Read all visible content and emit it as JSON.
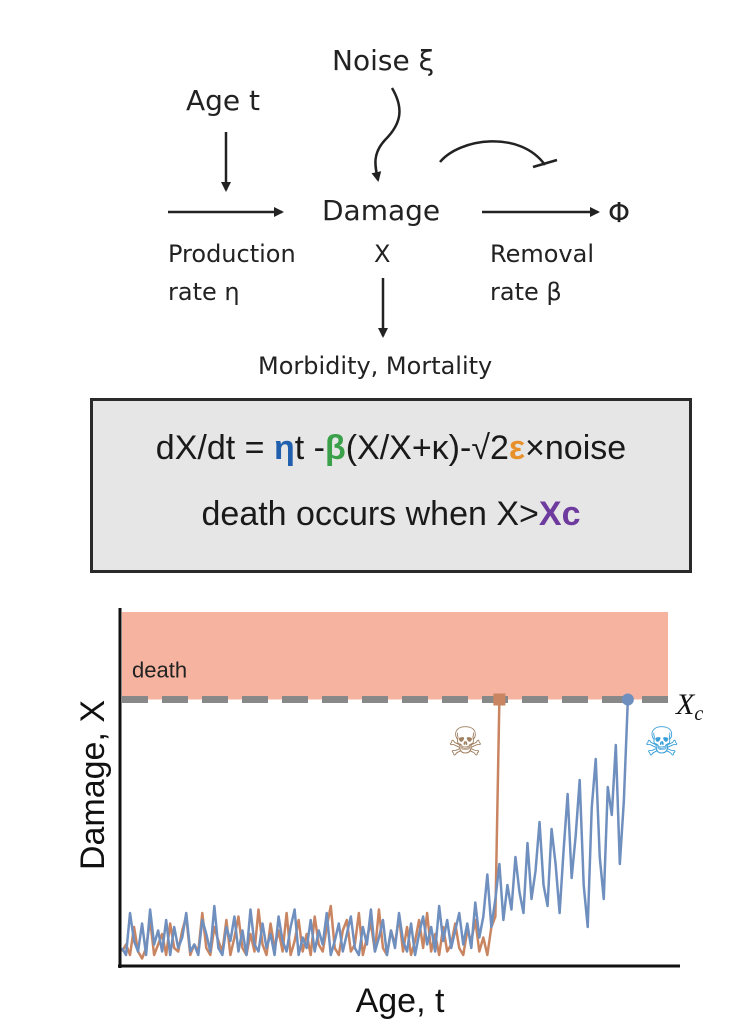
{
  "diagram": {
    "noise_label": "Noise ξ",
    "age_label": "Age t",
    "damage_label": "Damage",
    "damage_symbol": "X",
    "phi_symbol": "Φ",
    "production_line1": "Production",
    "production_line2": "rate  η",
    "removal_line1": "Removal",
    "removal_line2": "rate  β",
    "outcome_label": "Morbidity, Mortality"
  },
  "equation": {
    "line1_prefix": "dX/dt = ",
    "eta": "η",
    "line1_t": "t -",
    "beta": "β",
    "line1_mid": "(X/X+κ)-√2",
    "epsilon": "ε",
    "line1_suffix": "×noise",
    "line2_prefix": "death occurs when X>",
    "xc": "Xc",
    "colors": {
      "eta": "#1f5fae",
      "beta": "#3aa04a",
      "epsilon": "#e8912b",
      "xc": "#6f3a9e"
    }
  },
  "chart_data": {
    "type": "line",
    "xlabel": "Age, t",
    "ylabel": "Damage, X",
    "region_label": "death",
    "threshold_label": "X",
    "threshold_subscript": "c",
    "threshold": 0.75,
    "ylim": [
      0,
      1
    ],
    "xlim": [
      0,
      136
    ],
    "death_icons": [
      "☠",
      "☠"
    ],
    "colors": {
      "series1": "#c98561",
      "series2": "#6f8fbf",
      "death_region": "#f5b3a0",
      "threshold": "#888888"
    },
    "series": [
      {
        "values": [
          0.03,
          0.05,
          0.02,
          0.1,
          0.03,
          0.01,
          0.04,
          0.12,
          0.02,
          0.05,
          0.08,
          0.02,
          0.11,
          0.04,
          0.03,
          0.09,
          0.13,
          0.02,
          0.05,
          0.03,
          0.14,
          0.04,
          0.02,
          0.1,
          0.06,
          0.03,
          0.12,
          0.02,
          0.07,
          0.13,
          0.04,
          0.02,
          0.08,
          0.03,
          0.15,
          0.05,
          0.02,
          0.11,
          0.04,
          0.09,
          0.03,
          0.14,
          0.02,
          0.06,
          0.12,
          0.03,
          0.08,
          0.02,
          0.13,
          0.05,
          0.03,
          0.1,
          0.16,
          0.04,
          0.02,
          0.09,
          0.12,
          0.03,
          0.05,
          0.14,
          0.02,
          0.07,
          0.11,
          0.03,
          0.15,
          0.04,
          0.02,
          0.09,
          0.05,
          0.13,
          0.03,
          0.1,
          0.02,
          0.06,
          0.12,
          0.04,
          0.14,
          0.03,
          0.08,
          0.02,
          0.1,
          0.03,
          0.05,
          0.11,
          0.04,
          0.02,
          0.09,
          0.06,
          0.12,
          0.03,
          0.07,
          0.02,
          0.1,
          0.13,
          0.75
        ]
      },
      {
        "values": [
          0.04,
          0.02,
          0.14,
          0.06,
          0.03,
          0.11,
          0.02,
          0.15,
          0.05,
          0.09,
          0.03,
          0.12,
          0.02,
          0.1,
          0.04,
          0.07,
          0.14,
          0.03,
          0.05,
          0.02,
          0.12,
          0.08,
          0.03,
          0.16,
          0.04,
          0.02,
          0.1,
          0.06,
          0.13,
          0.03,
          0.09,
          0.02,
          0.15,
          0.05,
          0.03,
          0.11,
          0.04,
          0.08,
          0.02,
          0.13,
          0.06,
          0.03,
          0.1,
          0.15,
          0.02,
          0.07,
          0.04,
          0.12,
          0.03,
          0.09,
          0.05,
          0.14,
          0.02,
          0.06,
          0.11,
          0.03,
          0.08,
          0.13,
          0.04,
          0.02,
          0.1,
          0.05,
          0.15,
          0.03,
          0.07,
          0.12,
          0.02,
          0.09,
          0.04,
          0.14,
          0.06,
          0.03,
          0.11,
          0.02,
          0.08,
          0.13,
          0.05,
          0.1,
          0.03,
          0.16,
          0.06,
          0.12,
          0.04,
          0.09,
          0.14,
          0.05,
          0.11,
          0.04,
          0.17,
          0.07,
          0.13,
          0.25,
          0.1,
          0.18,
          0.28,
          0.12,
          0.22,
          0.15,
          0.3,
          0.2,
          0.14,
          0.34,
          0.18,
          0.26,
          0.4,
          0.22,
          0.16,
          0.38,
          0.28,
          0.14,
          0.32,
          0.48,
          0.24,
          0.36,
          0.52,
          0.22,
          0.1,
          0.44,
          0.58,
          0.3,
          0.18,
          0.5,
          0.42,
          0.62,
          0.28,
          0.46,
          0.75
        ]
      }
    ]
  }
}
